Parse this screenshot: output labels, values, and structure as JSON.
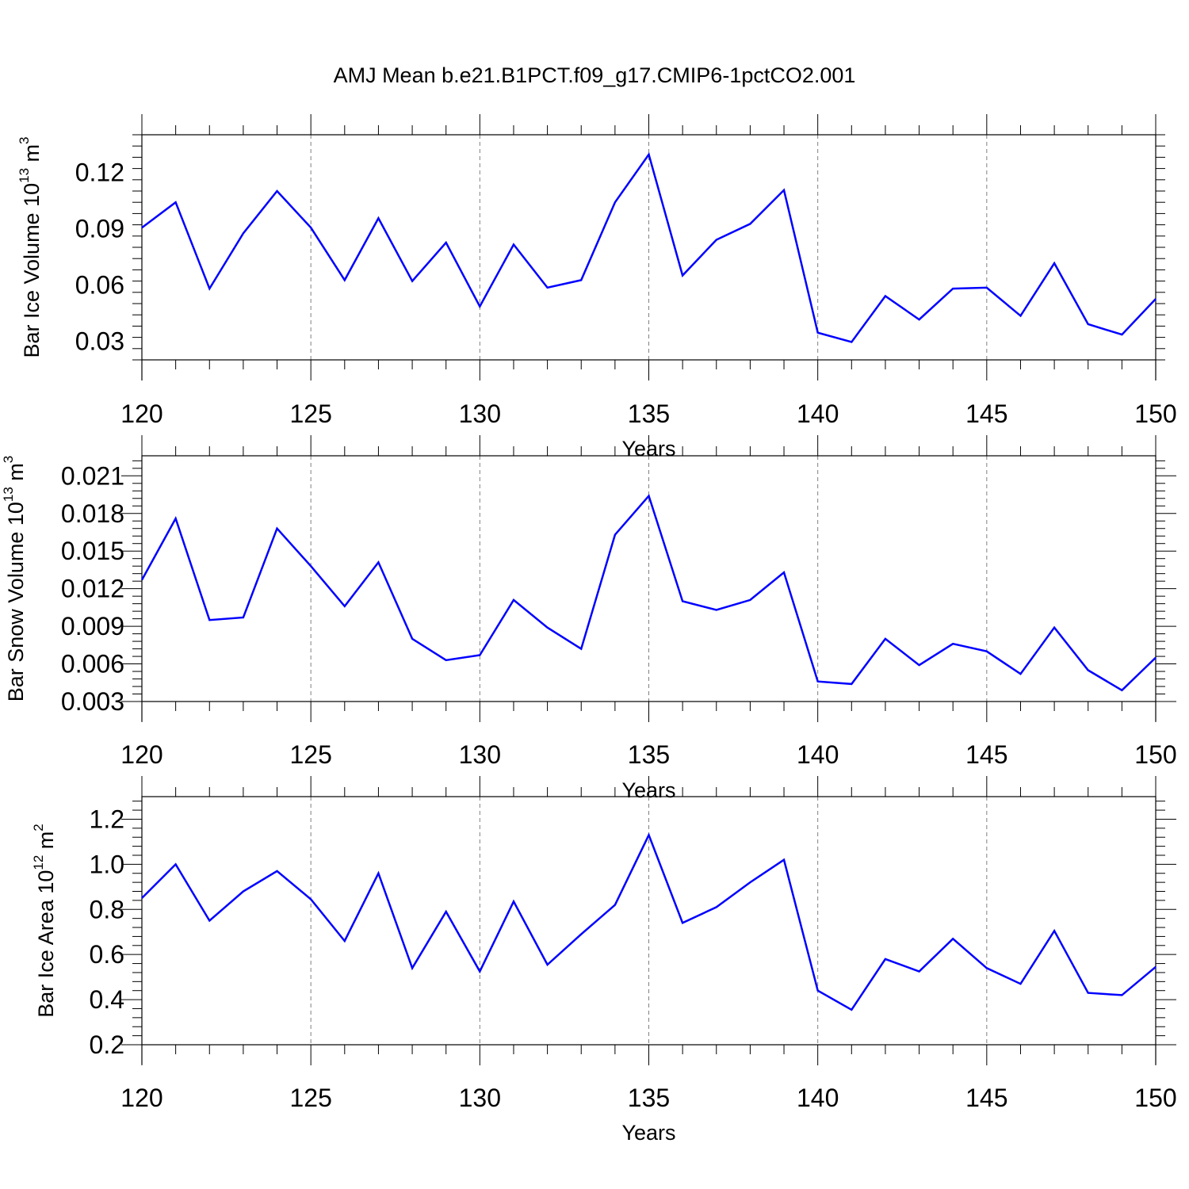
{
  "title": "AMJ Mean b.e21.B1PCT.f09_g17.CMIP6-1pctCO2.001",
  "colors": {
    "line": "#0000ff",
    "axis": "#000000",
    "grid": "#808080"
  },
  "chart_data": [
    {
      "type": "line",
      "ylabel": {
        "text": "Bar Ice Volume 10",
        "sup": "13",
        "unit": " m",
        "unit_sup": "3"
      },
      "xlabel": "Years",
      "xlim": [
        120,
        150
      ],
      "ylim": [
        0.02,
        0.14
      ],
      "yticks": [
        "0.03",
        "0.06",
        "0.09",
        "0.12"
      ],
      "xticks": [
        "120",
        "125",
        "130",
        "135",
        "140",
        "145",
        "150"
      ],
      "x": [
        120,
        121,
        122,
        123,
        124,
        125,
        126,
        127,
        128,
        129,
        130,
        131,
        132,
        133,
        134,
        135,
        136,
        137,
        138,
        139,
        140,
        141,
        142,
        143,
        144,
        145,
        146,
        147,
        148,
        149,
        150
      ],
      "values": [
        0.0905,
        0.104,
        0.058,
        0.0875,
        0.11,
        0.0905,
        0.0625,
        0.0955,
        0.062,
        0.0825,
        0.0485,
        0.0815,
        0.0585,
        0.0625,
        0.104,
        0.1295,
        0.065,
        0.084,
        0.0925,
        0.1105,
        0.0345,
        0.0295,
        0.054,
        0.0415,
        0.058,
        0.0585,
        0.0435,
        0.0715,
        0.039,
        0.0335,
        0.0525
      ]
    },
    {
      "type": "line",
      "ylabel": {
        "text": "Bar Snow Volume 10",
        "sup": "13",
        "unit": " m",
        "unit_sup": "3"
      },
      "xlabel": "Years",
      "xlim": [
        120,
        150
      ],
      "ylim": [
        0.003,
        0.0226
      ],
      "yticks": [
        "0.003",
        "0.006",
        "0.009",
        "0.012",
        "0.015",
        "0.018",
        "0.021"
      ],
      "xticks": [
        "120",
        "125",
        "130",
        "135",
        "140",
        "145",
        "150"
      ],
      "x": [
        120,
        121,
        122,
        123,
        124,
        125,
        126,
        127,
        128,
        129,
        130,
        131,
        132,
        133,
        134,
        135,
        136,
        137,
        138,
        139,
        140,
        141,
        142,
        143,
        144,
        145,
        146,
        147,
        148,
        149,
        150
      ],
      "values": [
        0.0127,
        0.0176,
        0.0095,
        0.0097,
        0.0168,
        0.0138,
        0.0106,
        0.0141,
        0.008,
        0.0063,
        0.0067,
        0.0111,
        0.0089,
        0.0072,
        0.0163,
        0.0194,
        0.011,
        0.0103,
        0.0111,
        0.0133,
        0.0046,
        0.0044,
        0.008,
        0.0059,
        0.0076,
        0.007,
        0.0052,
        0.0089,
        0.0055,
        0.0039,
        0.0065
      ]
    },
    {
      "type": "line",
      "ylabel": {
        "text": "Bar Ice Area 10",
        "sup": "12",
        "unit": " m",
        "unit_sup": "2"
      },
      "xlabel": "Years",
      "xlim": [
        120,
        150
      ],
      "ylim": [
        0.2,
        1.3
      ],
      "yticks": [
        "0.2",
        "0.4",
        "0.6",
        "0.8",
        "1.0",
        "1.2"
      ],
      "xticks": [
        "120",
        "125",
        "130",
        "135",
        "140",
        "145",
        "150"
      ],
      "x": [
        120,
        121,
        122,
        123,
        124,
        125,
        126,
        127,
        128,
        129,
        130,
        131,
        132,
        133,
        134,
        135,
        136,
        137,
        138,
        139,
        140,
        141,
        142,
        143,
        144,
        145,
        146,
        147,
        148,
        149,
        150
      ],
      "values": [
        0.85,
        1.0,
        0.75,
        0.88,
        0.97,
        0.845,
        0.66,
        0.96,
        0.54,
        0.79,
        0.525,
        0.835,
        0.555,
        0.69,
        0.82,
        1.13,
        0.74,
        0.81,
        0.92,
        1.02,
        0.44,
        0.355,
        0.58,
        0.525,
        0.67,
        0.54,
        0.47,
        0.705,
        0.43,
        0.42,
        0.545
      ]
    }
  ]
}
